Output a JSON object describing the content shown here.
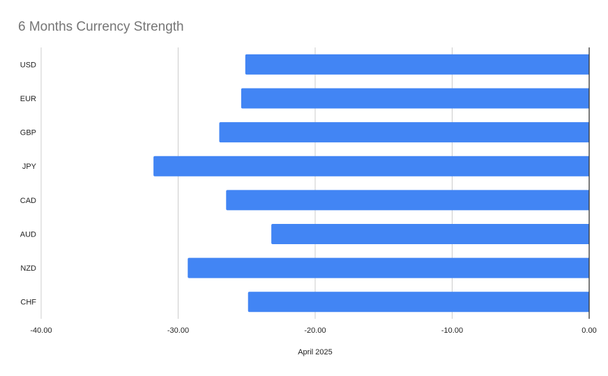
{
  "chart_data": {
    "type": "bar",
    "orientation": "horizontal",
    "title": "6 Months Currency Strength",
    "xlabel": "April 2025",
    "ylabel": "",
    "categories": [
      "USD",
      "EUR",
      "GBP",
      "JPY",
      "CAD",
      "AUD",
      "NZD",
      "CHF"
    ],
    "values": [
      -25.1,
      -25.4,
      -27.0,
      -31.8,
      -26.5,
      -23.2,
      -29.3,
      -24.9
    ],
    "xlim": [
      -40,
      0
    ],
    "xticks": [
      "-40.00",
      "-30.00",
      "-20.00",
      "-10.00",
      "0.00"
    ],
    "grid": true,
    "legend": "none",
    "bar_color": "#4285F4",
    "grid_color": "#cccccc",
    "axis_color": "#333333"
  }
}
